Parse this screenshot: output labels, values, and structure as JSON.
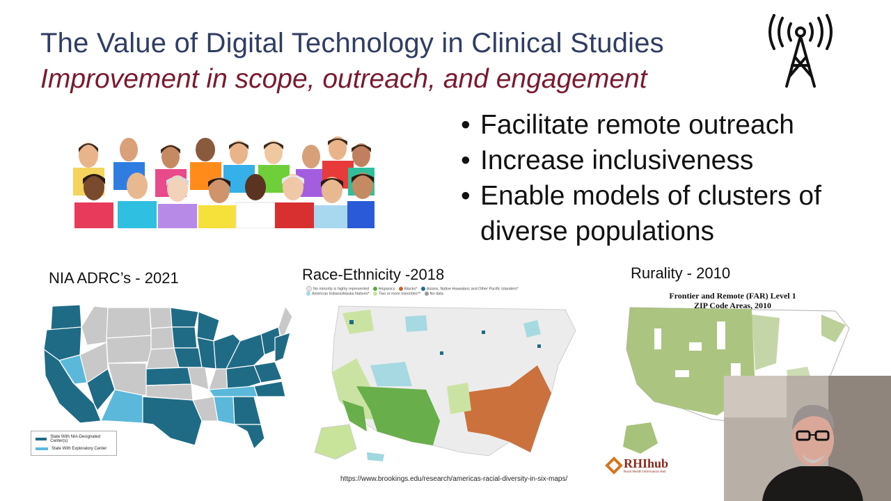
{
  "slide": {
    "title": "The Value of Digital Technology in Clinical Studies",
    "subtitle": "Improvement in scope, outreach, and engagement",
    "bullets": [
      "Facilitate remote outreach",
      "Increase inclusiveness",
      "Enable models of clusters of diverse populations"
    ],
    "bullet_symbol": "•",
    "tower_icon": "radio-tower-icon",
    "maps": [
      {
        "title": "NIA ADRC’s - 2021",
        "legend": [
          {
            "label": "State With NIA-Designated Center(s)",
            "color": "#1f6b85"
          },
          {
            "label": "State With Exploratory Center",
            "color": "#5bb8da"
          }
        ]
      },
      {
        "title": "Race-Ethnicity -2018",
        "legend": [
          {
            "label": "No minority is highly represented",
            "color": "#e8e8e8"
          },
          {
            "label": "Hispanics",
            "color": "#5aa83a"
          },
          {
            "label": "Blacks*",
            "color": "#c8642a"
          },
          {
            "label": "Asians, Native Hawaiians and Other Pacific Islanders*",
            "color": "#1f6b85"
          },
          {
            "label": "American Indians/Alaska Natives*",
            "color": "#9fd8e0"
          },
          {
            "label": "Two or more minorities**",
            "color": "#c8e39a"
          },
          {
            "label": "No data",
            "color": "#999999"
          }
        ],
        "source_url": "https://www.brookings.edu/research/americas-racial-diversity-in-six-maps/"
      },
      {
        "title": "Rurality - 2010",
        "map_title_line1": "Frontier and Remote (FAR) Level 1",
        "map_title_line2": "ZIP Code Areas, 2010",
        "logo_text": "RHIhub",
        "logo_subtext": "Rural Health Information Hub"
      }
    ]
  },
  "colors": {
    "title": "#2f3d63",
    "subtitle": "#7a1a2e",
    "nia_dark": "#1f6b85",
    "nia_light": "#5bb8da",
    "nia_none": "#c8c8c8",
    "far_green": "#a7c27a"
  }
}
